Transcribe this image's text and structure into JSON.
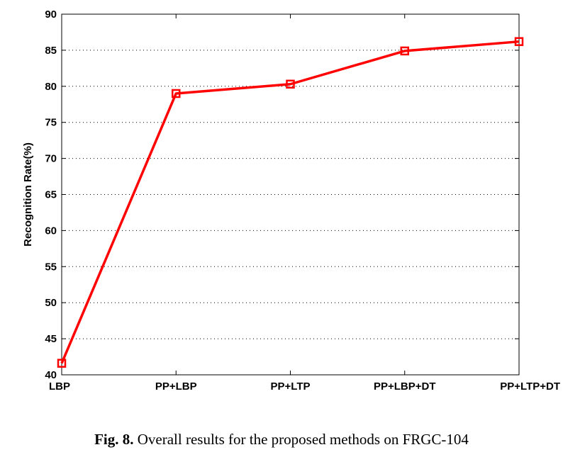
{
  "caption": {
    "label": "Fig. 8.",
    "text": " Overall results for the proposed methods on FRGC-104"
  },
  "chart_data": {
    "type": "line",
    "title": "",
    "xlabel": "",
    "ylabel": "Recognition Rate(%)",
    "categories": [
      "LBP",
      "PP+LBP",
      "PP+LTP",
      "PP+LBP+DT",
      "PP+LTP+DT"
    ],
    "series": [
      {
        "values": [
          41.6,
          79.0,
          80.3,
          84.9,
          86.2
        ],
        "color": "#ff0000",
        "marker": "square"
      }
    ],
    "ylim": [
      40,
      90
    ],
    "yticks": [
      40,
      45,
      50,
      55,
      60,
      65,
      70,
      75,
      80,
      85,
      90
    ],
    "grid": "dotted horizontal",
    "legend": "none"
  }
}
